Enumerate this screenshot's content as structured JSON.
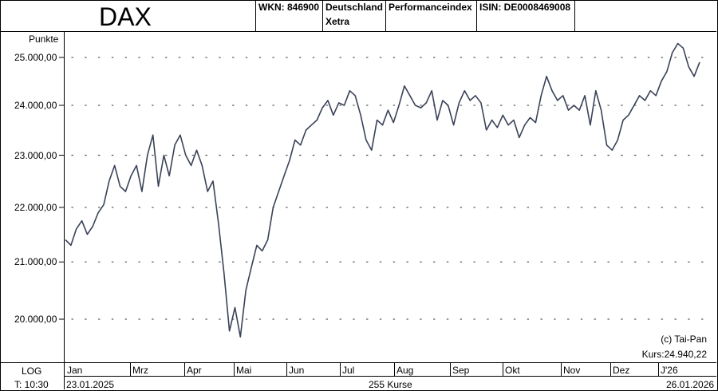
{
  "header": {
    "title": "DAX",
    "wkn": "WKN: 846900",
    "country": "Deutschland",
    "exchange": "Xetra",
    "index_type": "Performanceindex",
    "isin": "ISIN: DE0008469008"
  },
  "chart_data": {
    "type": "line",
    "ylabel": "Punkte",
    "y_ticks": [
      {
        "value": 25000,
        "label": "25.000,00"
      },
      {
        "value": 24000,
        "label": "24.000,00"
      },
      {
        "value": 23000,
        "label": "23.000,00"
      },
      {
        "value": 22000,
        "label": "22.000,00"
      },
      {
        "value": 21000,
        "label": "21.000,00"
      },
      {
        "value": 20000,
        "label": "20.000,00"
      }
    ],
    "scale": "log",
    "x_ticks": [
      "Jan",
      "Mrz",
      "Apr",
      "Mai",
      "Jun",
      "Jul",
      "Aug",
      "Sep",
      "Okt",
      "Nov",
      "Dez",
      "J'26"
    ],
    "grid": "dotted",
    "series": [
      {
        "values": [
          21400,
          21300,
          21600,
          21750,
          21500,
          21650,
          21900,
          22050,
          22500,
          22800,
          22400,
          22300,
          22600,
          22800,
          22300,
          23000,
          23400,
          22400,
          23000,
          22600,
          23200,
          23400,
          23000,
          22800,
          23100,
          22800,
          22300,
          22500,
          21700,
          20800,
          19800,
          20200,
          19700,
          20500,
          20900,
          21300,
          21200,
          21400,
          22000,
          22300,
          22600,
          22900,
          23300,
          23200,
          23500,
          23600,
          23700,
          23950,
          24100,
          23800,
          24050,
          24000,
          24300,
          24200,
          23800,
          23300,
          23100,
          23700,
          23600,
          23900,
          23650,
          24000,
          24400,
          24200,
          24000,
          23950,
          24050,
          24300,
          23700,
          24100,
          24000,
          23600,
          24050,
          24300,
          24100,
          24200,
          24050,
          23500,
          23700,
          23550,
          23800,
          23600,
          23700,
          23350,
          23600,
          23750,
          23650,
          24200,
          24600,
          24300,
          24100,
          24200,
          23900,
          24000,
          23900,
          24200,
          23600,
          24300,
          23900,
          23200,
          23100,
          23300,
          23700,
          23800,
          24000,
          24200,
          24100,
          24300,
          24200,
          24500,
          24700,
          25100,
          25300,
          25200,
          24800,
          24600,
          24900
        ]
      }
    ],
    "annotations": {
      "copyright": "(c) Tai-Pan",
      "kurs": "Kurs:24.940,22"
    }
  },
  "footer": {
    "scale_label": "LOG",
    "time_label": "T: 10:30",
    "start_date": "23.01.2025",
    "count_label": "255 Kurse",
    "end_date": "26.01.2026"
  },
  "colors": {
    "line": "#3a4258",
    "grid": "#555555",
    "border": "#000000"
  }
}
